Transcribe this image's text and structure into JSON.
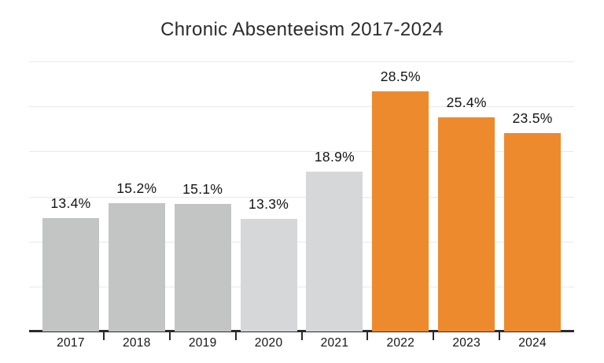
{
  "chart_data": {
    "type": "bar",
    "title": "Chronic Absenteeism 2017-2024",
    "categories": [
      "2017",
      "2018",
      "2019",
      "2020",
      "2021",
      "2022",
      "2023",
      "2024"
    ],
    "values": [
      13.4,
      15.2,
      15.1,
      13.3,
      18.9,
      28.5,
      25.4,
      23.5
    ],
    "value_labels": [
      "13.4%",
      "15.2%",
      "15.1%",
      "13.3%",
      "18.9%",
      "28.5%",
      "25.4%",
      "23.5%"
    ],
    "bar_colors": [
      "#c2c5c4",
      "#c2c5c4",
      "#c2c5c4",
      "#d6d7d9",
      "#d6d7d9",
      "#ed8a2e",
      "#ed8a2e",
      "#ed8a2e"
    ],
    "xlabel": "",
    "ylabel": "",
    "ylim": [
      0,
      32
    ],
    "gridline_count": 6,
    "grid": true,
    "legend": false,
    "colors": {
      "gray_bars_2017_2019": "#c2c5c4",
      "light_gray_bars_2020_2021": "#d6d7d9",
      "orange_bars_2022_2024": "#ed8a2e",
      "axis": "#2b2b2b",
      "gridline": "#e9e9e9",
      "text": "#141414",
      "background": "#ffffff"
    }
  }
}
